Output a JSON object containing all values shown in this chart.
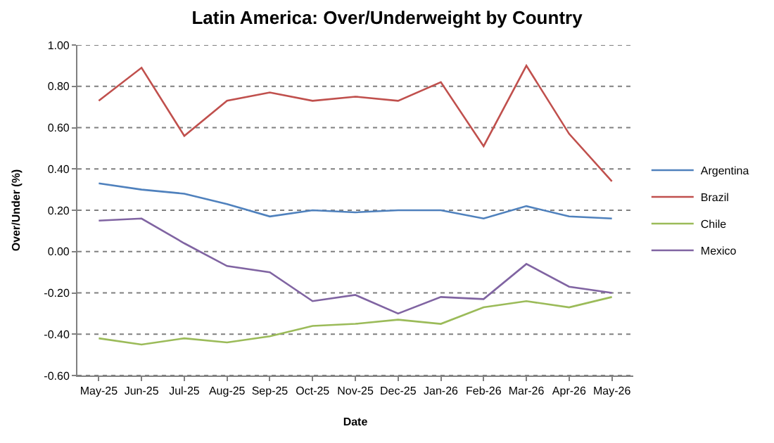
{
  "chart_data": {
    "type": "line",
    "title": "Latin America: Over/Underweight by Country",
    "xlabel": "Date",
    "ylabel": "Over/Under (%)",
    "categories": [
      "May-25",
      "Jun-25",
      "Jul-25",
      "Aug-25",
      "Sep-25",
      "Oct-25",
      "Nov-25",
      "Dec-25",
      "Jan-26",
      "Feb-26",
      "Mar-26",
      "Apr-26",
      "May-26"
    ],
    "series": [
      {
        "name": "Argentina",
        "color": "#4f81bd",
        "values": [
          0.33,
          0.3,
          0.28,
          0.23,
          0.17,
          0.2,
          0.19,
          0.2,
          0.2,
          0.16,
          0.22,
          0.17,
          0.16
        ]
      },
      {
        "name": "Brazil",
        "color": "#c0504d",
        "values": [
          0.73,
          0.89,
          0.56,
          0.73,
          0.77,
          0.73,
          0.75,
          0.73,
          0.82,
          0.51,
          0.9,
          0.57,
          0.34
        ]
      },
      {
        "name": "Chile",
        "color": "#9bbb59",
        "values": [
          -0.42,
          -0.45,
          -0.42,
          -0.44,
          -0.41,
          -0.36,
          -0.35,
          -0.33,
          -0.35,
          -0.27,
          -0.24,
          -0.27,
          -0.22
        ]
      },
      {
        "name": "Mexico",
        "color": "#8064a2",
        "values": [
          0.15,
          0.16,
          0.04,
          -0.07,
          -0.1,
          -0.24,
          -0.21,
          -0.3,
          -0.22,
          -0.23,
          -0.06,
          -0.17,
          -0.2
        ]
      }
    ],
    "ylim": [
      -0.6,
      1.0
    ],
    "yticks": [
      {
        "value": -0.6,
        "label": "-0.60"
      },
      {
        "value": -0.4,
        "label": "-0.40"
      },
      {
        "value": -0.2,
        "label": "-0.20"
      },
      {
        "value": 0,
        "label": "0.00"
      },
      {
        "value": 0.2,
        "label": "0.20"
      },
      {
        "value": 0.4,
        "label": "0.40"
      },
      {
        "value": 0.6,
        "label": "0.60"
      },
      {
        "value": 0.8,
        "label": "0.80"
      },
      {
        "value": 1.0,
        "label": "1.00"
      }
    ],
    "grid": "y",
    "legend": "right",
    "marker": "none",
    "line_style": "solid"
  }
}
